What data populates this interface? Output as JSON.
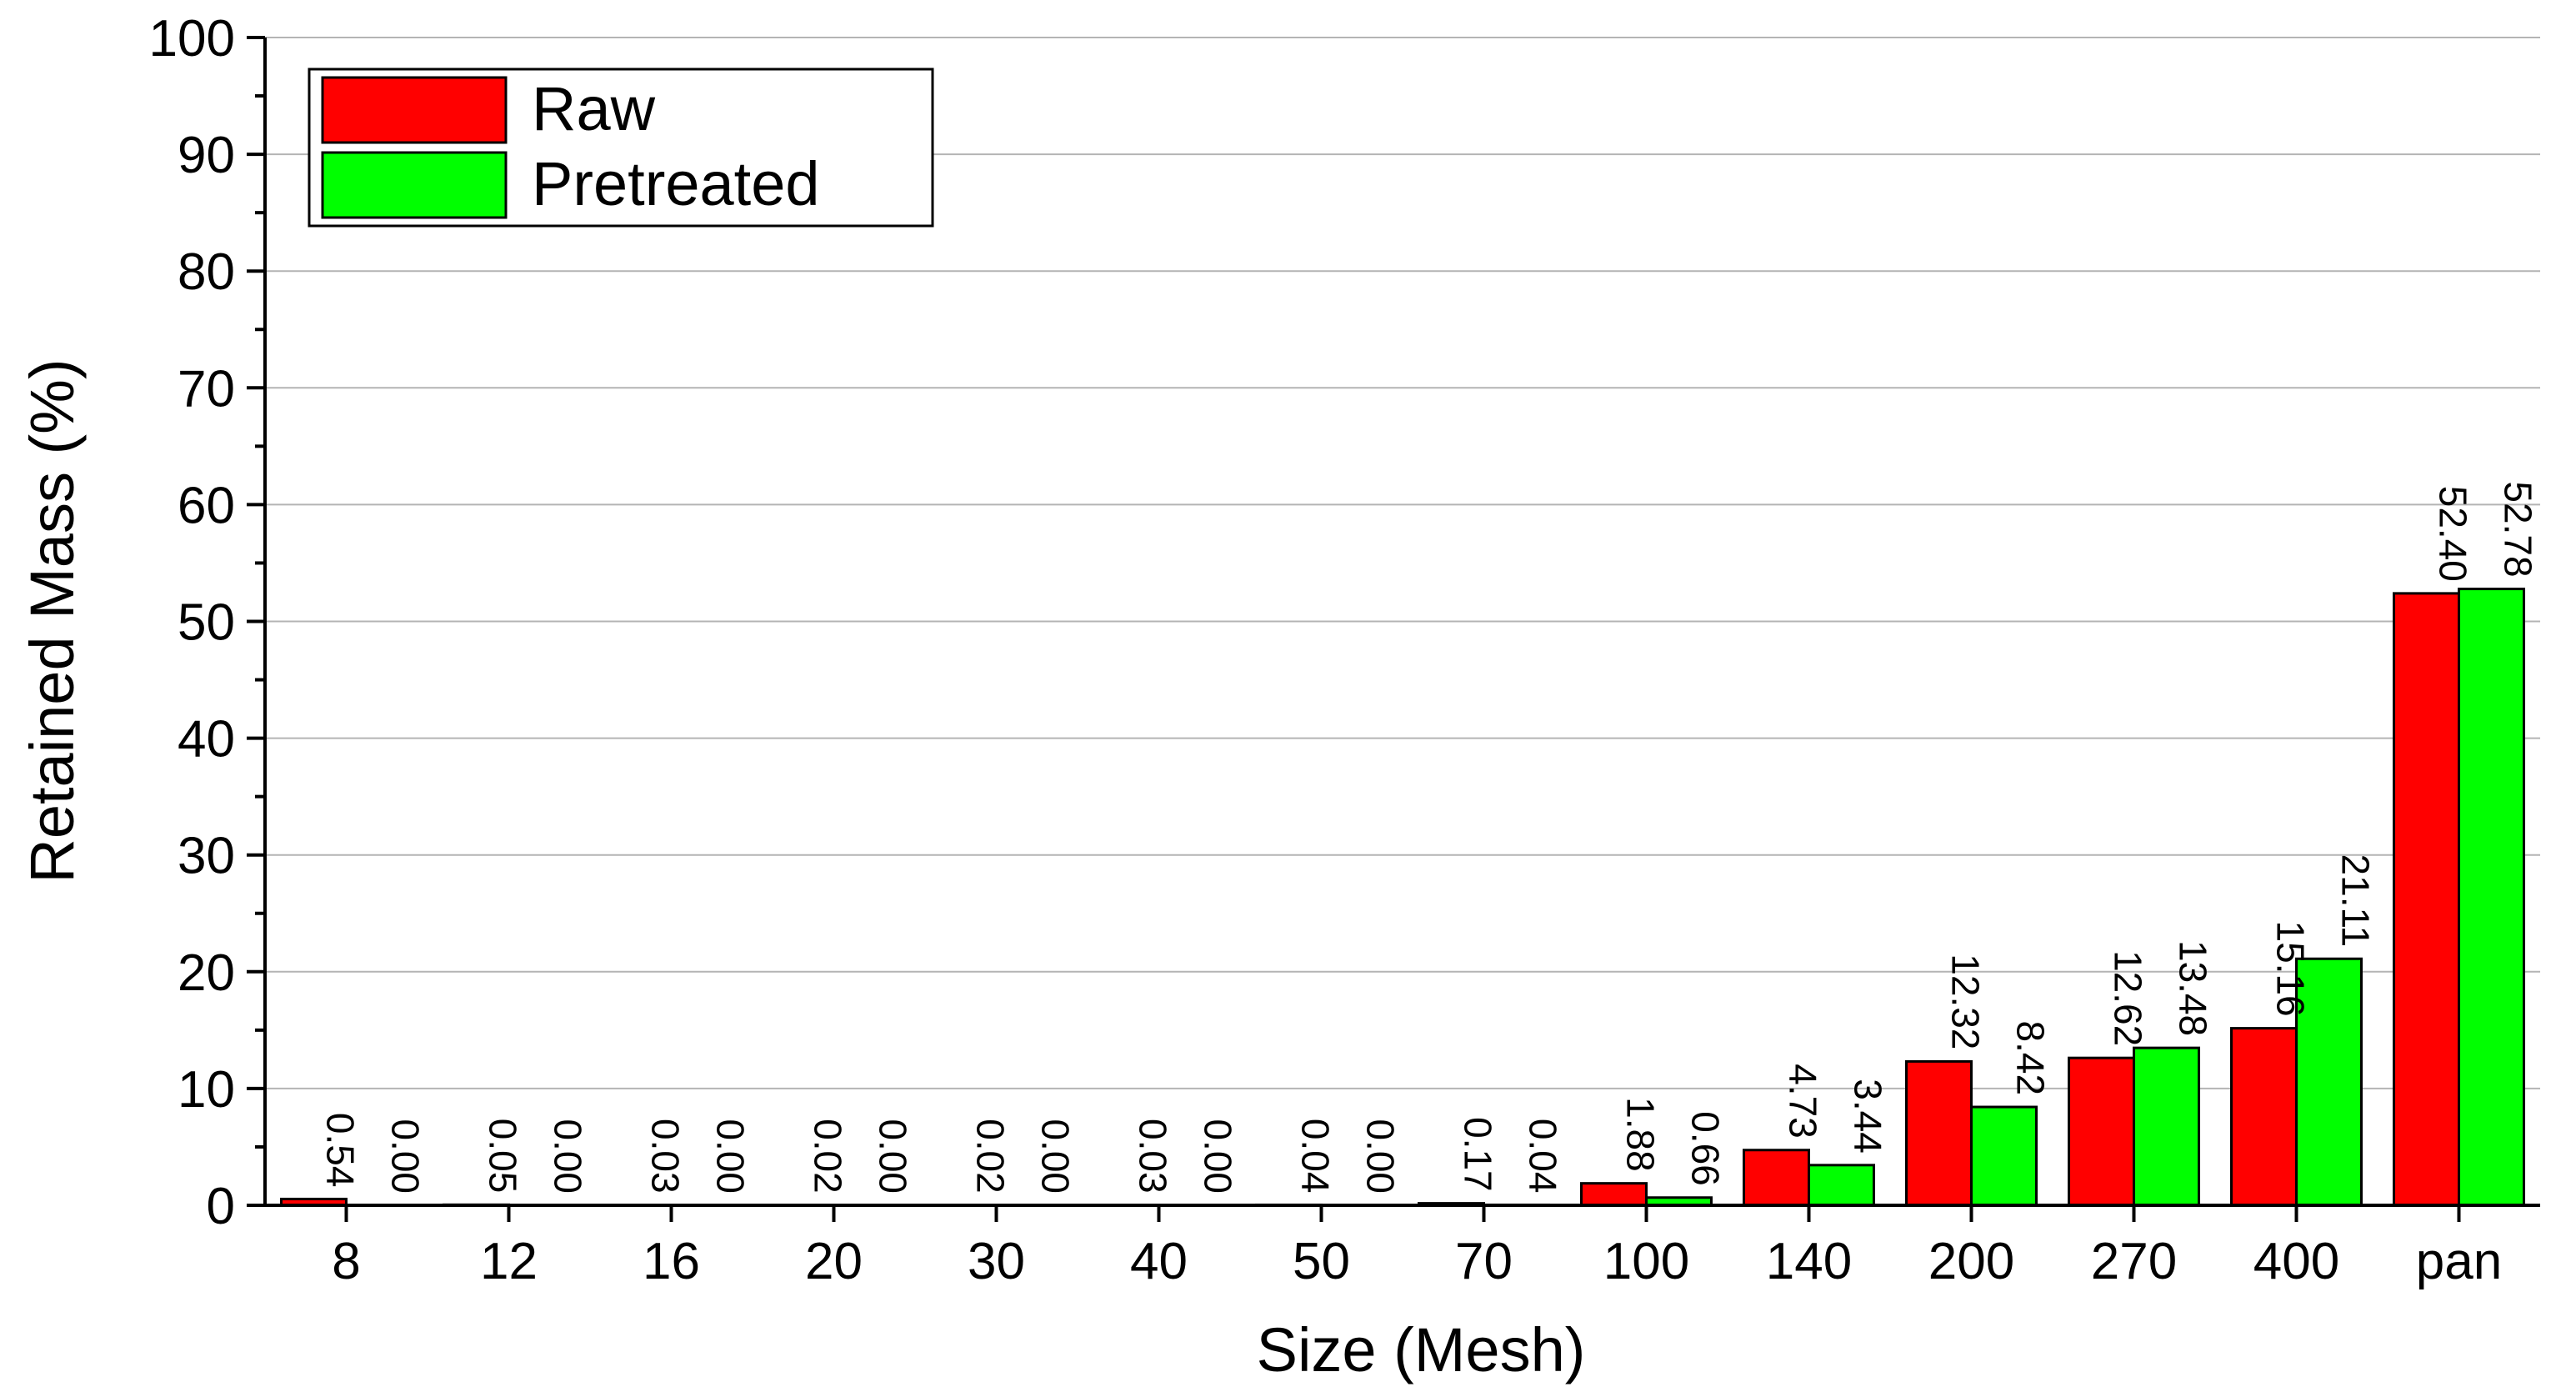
{
  "chart_data": {
    "type": "bar",
    "xlabel": "Size (Mesh)",
    "ylabel": "Retained Mass (%)",
    "ylim": [
      0,
      100
    ],
    "yticks": [
      "0",
      "10",
      "20",
      "30",
      "40",
      "50",
      "60",
      "70",
      "80",
      "90",
      "100"
    ],
    "grid": true,
    "legend_position": "top-left",
    "categories": [
      "8",
      "12",
      "16",
      "20",
      "30",
      "40",
      "50",
      "70",
      "100",
      "140",
      "200",
      "270",
      "400",
      "pan"
    ],
    "series": [
      {
        "name": "Raw",
        "color": "#ff0000",
        "values": [
          0.54,
          0.05,
          0.03,
          0.02,
          0.02,
          0.03,
          0.04,
          0.17,
          1.88,
          4.73,
          12.32,
          12.62,
          15.16,
          52.4
        ],
        "labels": [
          "0.54",
          "0.05",
          "0.03",
          "0.02",
          "0.02",
          "0.03",
          "0.04",
          "0.17",
          "1.88",
          "4.73",
          "12.32",
          "12.62",
          "15.16",
          "52.40"
        ]
      },
      {
        "name": "Pretreated",
        "color": "#00ff00",
        "values": [
          0.0,
          0.0,
          0.0,
          0.0,
          0.0,
          0.0,
          0.0,
          0.04,
          0.66,
          3.44,
          8.42,
          13.48,
          21.11,
          52.78
        ],
        "labels": [
          "0.00",
          "0.00",
          "0.00",
          "0.00",
          "0.00",
          "0.00",
          "0.00",
          "0.04",
          "0.66",
          "3.44",
          "8.42",
          "13.48",
          "21.11",
          "52.78"
        ]
      }
    ]
  }
}
